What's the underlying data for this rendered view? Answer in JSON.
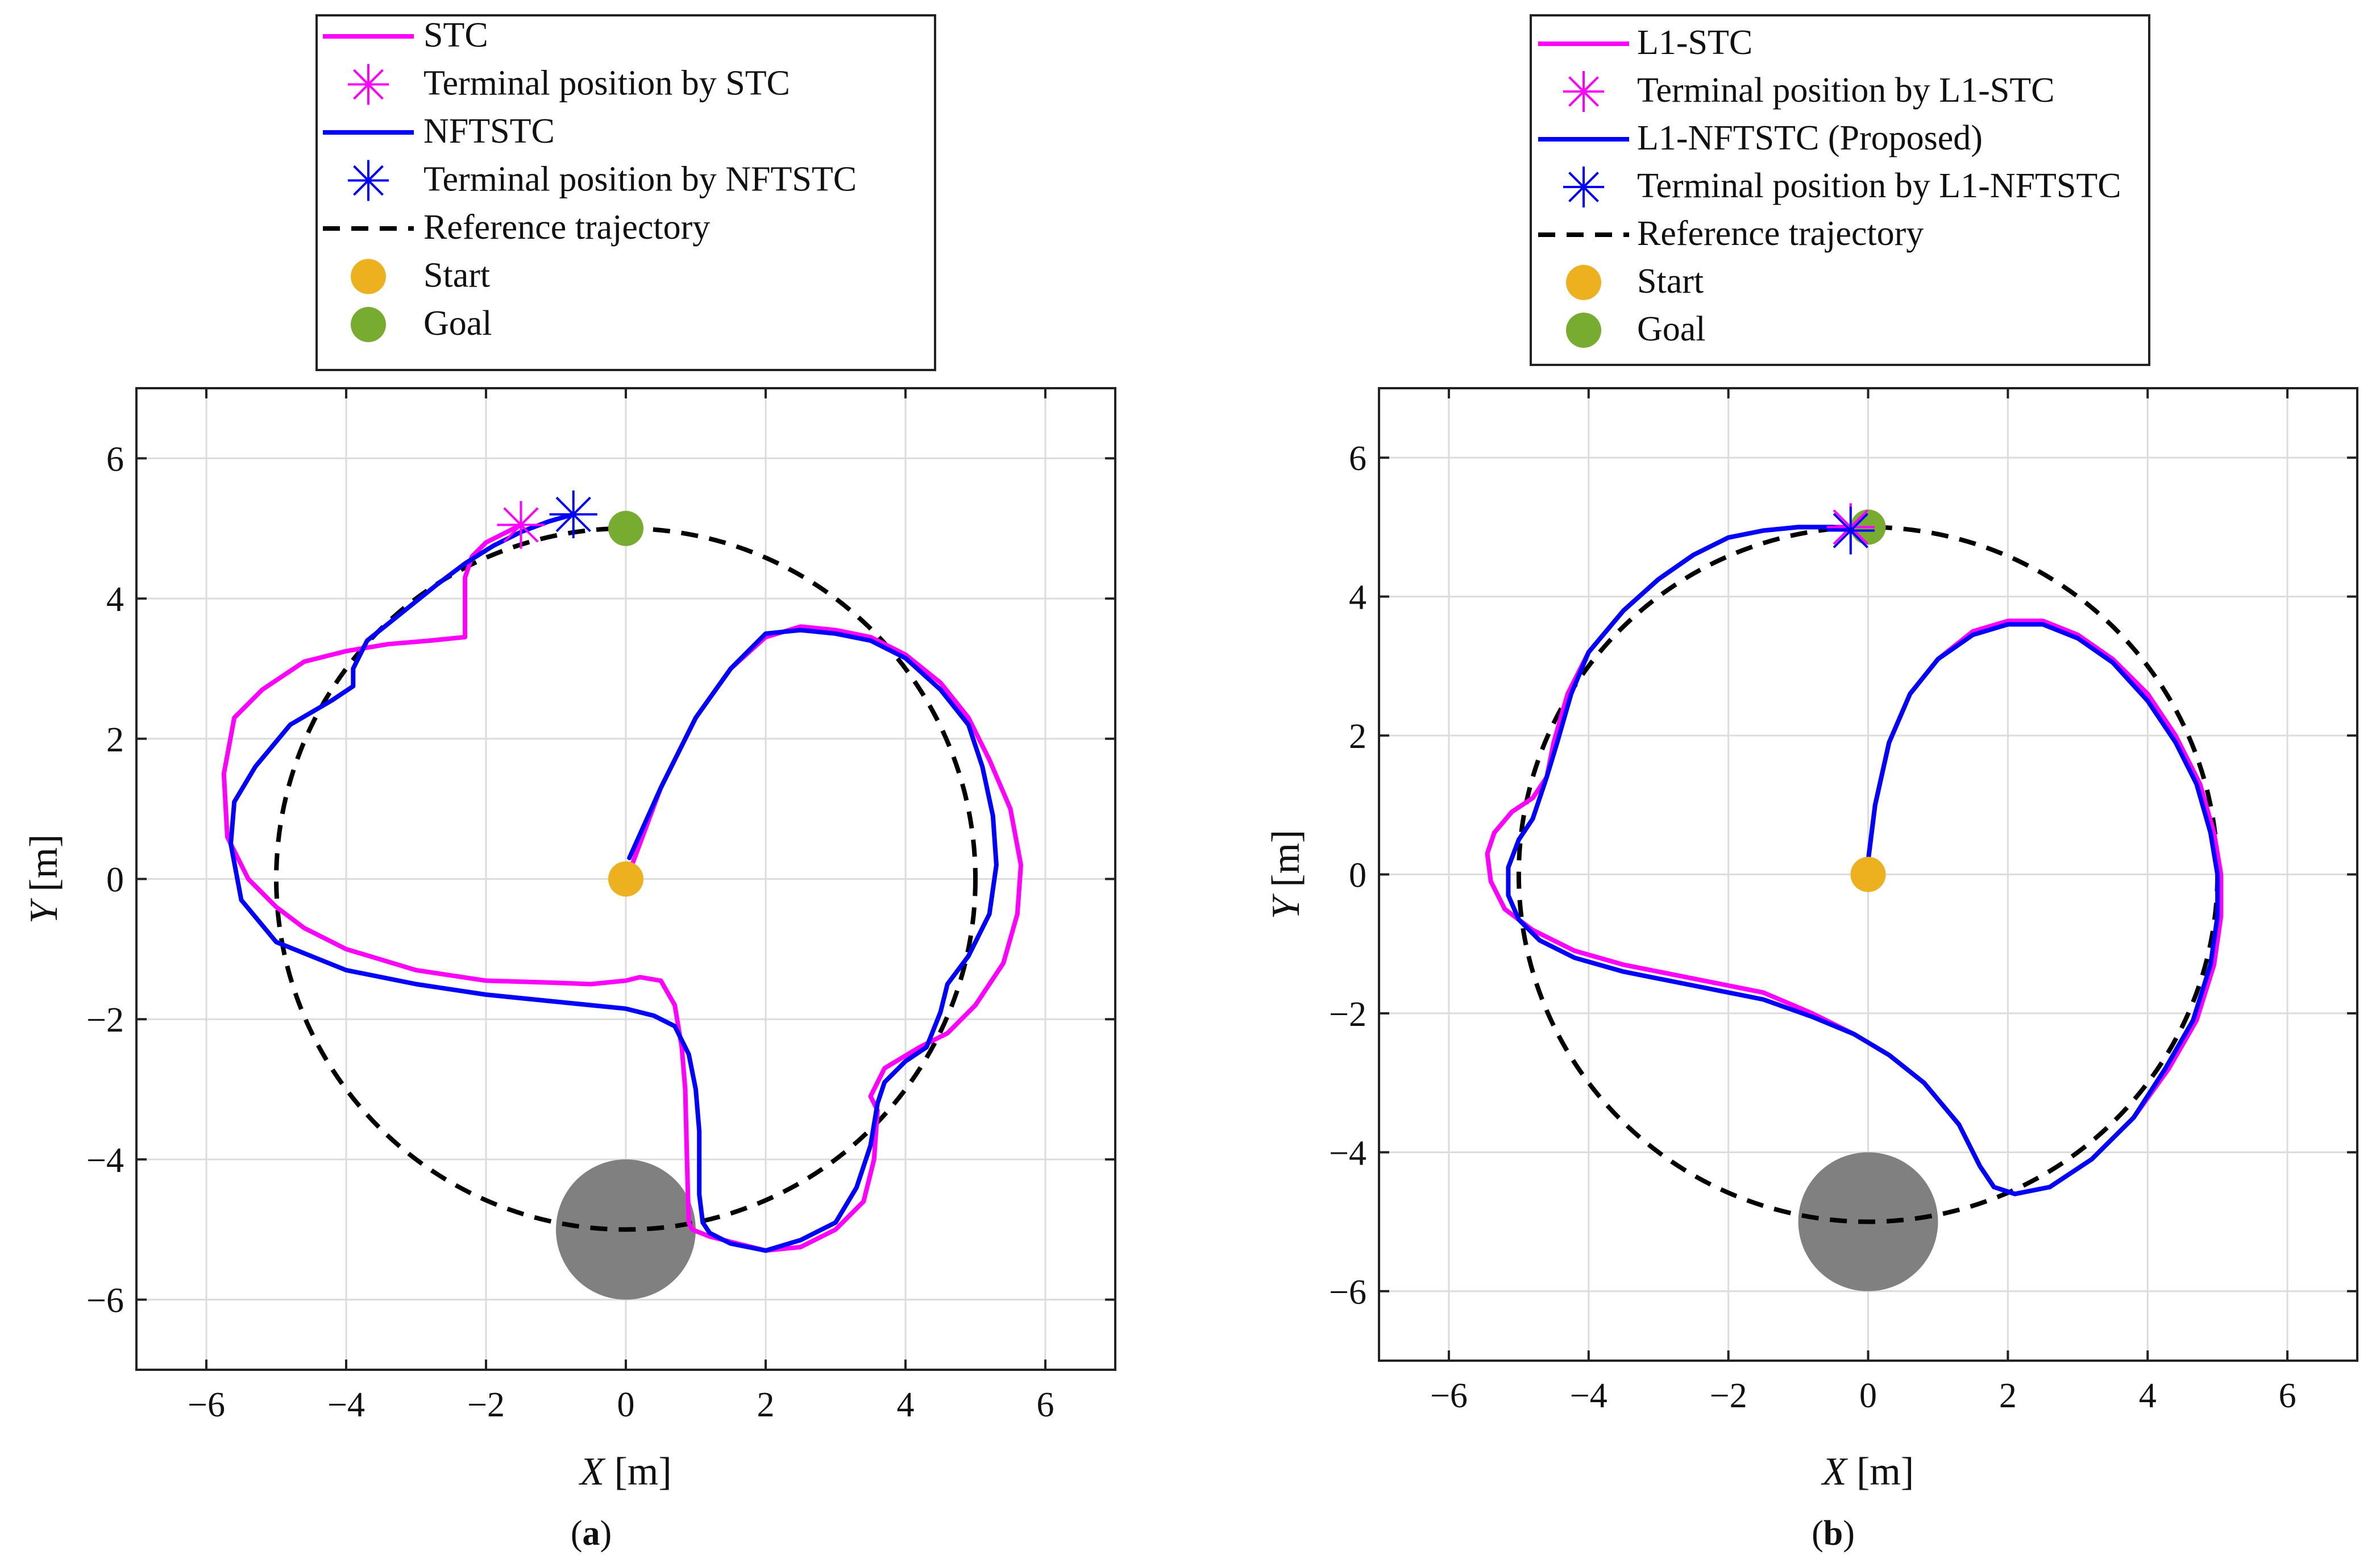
{
  "colors": {
    "stc": "#ff00ff",
    "nftstc": "#0000ff",
    "reference": "#000000",
    "start": "#edb120",
    "goal": "#77ac30",
    "obstacle": "#808080"
  },
  "panel_labels": [
    [
      "(",
      "a",
      ")"
    ],
    [
      "(",
      "b",
      ")"
    ]
  ],
  "axis_symbols": {
    "x_var": "X",
    "x_unit": "[m]",
    "y_var": "Y",
    "y_unit": "[m]"
  },
  "chart_data": [
    {
      "type": "line",
      "xlabel": "X [m]",
      "ylabel": "Y [m]",
      "xlim": [
        -7,
        7
      ],
      "ylim": [
        -7,
        7
      ],
      "xticks": [
        -6,
        -4,
        -2,
        0,
        2,
        4,
        6
      ],
      "yticks": [
        -6,
        -4,
        -2,
        0,
        2,
        4,
        6
      ],
      "xtick_labels": [
        "−6",
        "−4",
        "−2",
        "0",
        "2",
        "4",
        "6"
      ],
      "ytick_labels": [
        "−6",
        "−4",
        "−2",
        "0",
        "2",
        "4",
        "6"
      ],
      "grid": true,
      "legend": [
        "STC",
        "Terminal position by STC",
        "NFTSTC",
        "Terminal position by NFTSTC",
        "Reference trajectory",
        "Start",
        "Goal"
      ],
      "legend_position": "top",
      "reference": {
        "shape": "circle",
        "center": [
          0,
          0
        ],
        "radius": 5
      },
      "start": [
        0,
        0
      ],
      "goal": [
        0,
        5
      ],
      "obstacle": {
        "center": [
          0,
          -5
        ],
        "radius": 1
      },
      "terminal_stc": [
        -1.5,
        5.05
      ],
      "terminal_nftstc": [
        -0.75,
        5.2
      ],
      "series": [
        {
          "name": "STC",
          "x": [
            0.05,
            0.5,
            1.0,
            1.5,
            2.0,
            2.5,
            3.0,
            3.5,
            4.0,
            4.5,
            4.9,
            5.2,
            5.5,
            5.65,
            5.6,
            5.4,
            5.0,
            4.6,
            4.2,
            3.7,
            3.5,
            3.6,
            3.55,
            3.4,
            3.0,
            2.5,
            2.0,
            1.6,
            1.2,
            0.95,
            0.9,
            0.88,
            0.85,
            0.8,
            0.7,
            0.5,
            0.2,
            0.0,
            -0.5,
            -1.0,
            -2.0,
            -3.0,
            -4.0,
            -4.6,
            -5.0,
            -5.4,
            -5.7,
            -5.75,
            -5.6,
            -5.2,
            -4.6,
            -4.0,
            -3.4,
            -2.8,
            -2.3,
            -2.3,
            -2.3,
            -2.3,
            -2.2,
            -2.0,
            -1.5
          ],
          "y": [
            0.1,
            1.3,
            2.3,
            3.0,
            3.45,
            3.6,
            3.55,
            3.45,
            3.2,
            2.8,
            2.3,
            1.7,
            1.0,
            0.2,
            -0.5,
            -1.2,
            -1.8,
            -2.2,
            -2.4,
            -2.7,
            -3.1,
            -3.3,
            -4.0,
            -4.6,
            -5.0,
            -5.25,
            -5.3,
            -5.2,
            -5.1,
            -5.0,
            -4.9,
            -4.2,
            -3.0,
            -2.4,
            -1.8,
            -1.45,
            -1.4,
            -1.45,
            -1.5,
            -1.48,
            -1.45,
            -1.3,
            -1.0,
            -0.7,
            -0.4,
            0.0,
            0.6,
            1.5,
            2.3,
            2.7,
            3.1,
            3.25,
            3.35,
            3.4,
            3.45,
            3.6,
            3.9,
            4.3,
            4.6,
            4.8,
            5.05
          ]
        },
        {
          "name": "NFTSTC",
          "x": [
            0.05,
            0.5,
            1.0,
            1.5,
            2.0,
            2.5,
            3.0,
            3.5,
            4.0,
            4.5,
            4.9,
            5.1,
            5.25,
            5.3,
            5.2,
            4.9,
            4.6,
            4.5,
            4.3,
            4.0,
            3.7,
            3.6,
            3.5,
            3.3,
            3.0,
            2.5,
            2.0,
            1.5,
            1.2,
            1.1,
            1.05,
            1.05,
            1.0,
            0.9,
            0.7,
            0.4,
            0.0,
            -1.0,
            -2.0,
            -3.0,
            -4.0,
            -5.0,
            -5.5,
            -5.65,
            -5.6,
            -5.3,
            -4.8,
            -4.2,
            -3.9,
            -3.9,
            -3.7,
            -3.2,
            -2.7,
            -2.3,
            -1.9,
            -1.5,
            -1.1,
            -0.75
          ],
          "y": [
            0.3,
            1.3,
            2.3,
            3.0,
            3.5,
            3.55,
            3.5,
            3.4,
            3.15,
            2.7,
            2.2,
            1.6,
            0.9,
            0.2,
            -0.5,
            -1.1,
            -1.5,
            -1.9,
            -2.4,
            -2.6,
            -2.9,
            -3.2,
            -3.8,
            -4.4,
            -4.9,
            -5.15,
            -5.3,
            -5.2,
            -5.05,
            -4.9,
            -4.5,
            -3.6,
            -3.0,
            -2.5,
            -2.1,
            -1.95,
            -1.85,
            -1.75,
            -1.65,
            -1.5,
            -1.3,
            -0.9,
            -0.3,
            0.5,
            1.1,
            1.6,
            2.2,
            2.55,
            2.75,
            3.0,
            3.4,
            3.8,
            4.2,
            4.5,
            4.75,
            4.95,
            5.1,
            5.2
          ]
        }
      ]
    },
    {
      "type": "line",
      "xlabel": "X [m]",
      "ylabel": "Y [m]",
      "xlim": [
        -7,
        7
      ],
      "ylim": [
        -7,
        7
      ],
      "xticks": [
        -6,
        -4,
        -2,
        0,
        2,
        4,
        6
      ],
      "yticks": [
        -6,
        -4,
        -2,
        0,
        2,
        4,
        6
      ],
      "xtick_labels": [
        "−6",
        "−4",
        "−2",
        "0",
        "2",
        "4",
        "6"
      ],
      "ytick_labels": [
        "−6",
        "−4",
        "−2",
        "0",
        "2",
        "4",
        "6"
      ],
      "grid": true,
      "legend": [
        "L1-STC",
        "Terminal position by L1-STC",
        "L1-NFTSTC (Proposed)",
        "Terminal position by L1-NFTSTC",
        "Reference trajectory",
        "Start",
        "Goal"
      ],
      "legend_position": "top",
      "reference": {
        "shape": "circle",
        "center": [
          0,
          0
        ],
        "radius": 5
      },
      "start": [
        0,
        0
      ],
      "goal": [
        0,
        5
      ],
      "obstacle": {
        "center": [
          0,
          -5
        ],
        "radius": 1
      },
      "terminal_stc": [
        -0.25,
        5.0
      ],
      "terminal_nftstc": [
        -0.25,
        4.95
      ],
      "series": [
        {
          "name": "L1-STC",
          "x": [
            0.0,
            0.1,
            0.3,
            0.6,
            1.0,
            1.5,
            2.0,
            2.5,
            3.0,
            3.5,
            4.0,
            4.4,
            4.75,
            4.95,
            5.05,
            5.05,
            4.95,
            4.7,
            4.3,
            3.8,
            3.2,
            2.6,
            2.1,
            1.8,
            1.6,
            1.3,
            0.8,
            0.3,
            -0.2,
            -0.8,
            -1.5,
            -2.5,
            -3.5,
            -4.2,
            -4.8,
            -5.2,
            -5.4,
            -5.45,
            -5.35,
            -5.1,
            -4.8,
            -4.6,
            -4.5,
            -4.3,
            -4.0,
            -3.5,
            -3.0,
            -2.5,
            -2.0,
            -1.5,
            -1.0,
            -0.5,
            -0.25
          ],
          "y": [
            0.2,
            1.0,
            1.9,
            2.6,
            3.1,
            3.5,
            3.65,
            3.65,
            3.45,
            3.1,
            2.6,
            2.0,
            1.3,
            0.6,
            0.0,
            -0.6,
            -1.3,
            -2.1,
            -2.8,
            -3.5,
            -4.1,
            -4.5,
            -4.6,
            -4.5,
            -4.2,
            -3.6,
            -3.0,
            -2.6,
            -2.3,
            -2.0,
            -1.7,
            -1.5,
            -1.3,
            -1.1,
            -0.8,
            -0.5,
            -0.1,
            0.3,
            0.6,
            0.9,
            1.1,
            1.4,
            1.9,
            2.6,
            3.2,
            3.8,
            4.25,
            4.6,
            4.85,
            4.95,
            5.0,
            5.0,
            5.0
          ]
        },
        {
          "name": "L1-NFTSTC (Proposed)",
          "x": [
            0.0,
            0.1,
            0.3,
            0.6,
            1.0,
            1.5,
            2.0,
            2.5,
            3.0,
            3.5,
            4.0,
            4.4,
            4.7,
            4.9,
            5.0,
            5.0,
            4.9,
            4.65,
            4.25,
            3.8,
            3.2,
            2.6,
            2.1,
            1.8,
            1.6,
            1.3,
            0.8,
            0.3,
            -0.2,
            -0.8,
            -1.5,
            -2.5,
            -3.5,
            -4.2,
            -4.7,
            -5.0,
            -5.15,
            -5.15,
            -5.0,
            -4.8,
            -4.7,
            -4.6,
            -4.45,
            -4.25,
            -4.0,
            -3.5,
            -3.0,
            -2.5,
            -2.0,
            -1.5,
            -1.0,
            -0.5,
            -0.25
          ],
          "y": [
            0.2,
            1.0,
            1.9,
            2.6,
            3.1,
            3.45,
            3.6,
            3.6,
            3.4,
            3.05,
            2.5,
            1.9,
            1.3,
            0.6,
            0.0,
            -0.6,
            -1.3,
            -2.1,
            -2.8,
            -3.5,
            -4.1,
            -4.5,
            -4.6,
            -4.5,
            -4.2,
            -3.6,
            -3.0,
            -2.6,
            -2.3,
            -2.05,
            -1.8,
            -1.6,
            -1.4,
            -1.2,
            -0.95,
            -0.65,
            -0.3,
            0.1,
            0.5,
            0.8,
            1.1,
            1.4,
            1.9,
            2.6,
            3.2,
            3.8,
            4.25,
            4.6,
            4.85,
            4.95,
            5.0,
            5.0,
            4.95
          ]
        }
      ]
    }
  ]
}
